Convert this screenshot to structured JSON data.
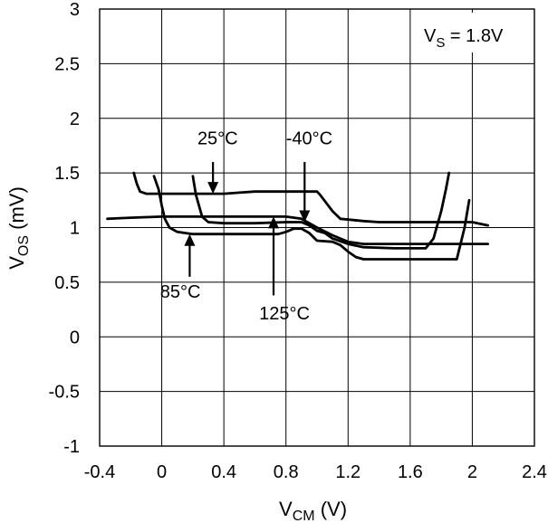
{
  "chart_data": {
    "type": "line",
    "xlabel": {
      "main": "V",
      "sub": "CM",
      "unit": " (V)"
    },
    "ylabel": {
      "main": "V",
      "sub": "OS",
      "unit": " (mV)"
    },
    "xlim": [
      -0.4,
      2.4
    ],
    "ylim": [
      -1,
      3
    ],
    "xticks": [
      -0.4,
      0,
      0.4,
      0.8,
      1.2,
      1.6,
      2,
      2.4
    ],
    "xtick_labels": [
      "-0.4",
      "0",
      "0.4",
      "0.8",
      "1.2",
      "1.6",
      "2",
      "2.4"
    ],
    "yticks": [
      -1,
      -0.5,
      0,
      0.5,
      1,
      1.5,
      2,
      2.5,
      3
    ],
    "ytick_labels": [
      "-1",
      "-0.5",
      "0",
      "0.5",
      "1",
      "1.5",
      "2",
      "2.5",
      "3"
    ],
    "grid": true,
    "condition": {
      "main": "V",
      "sub": "S",
      "value": " = 1.8V"
    },
    "series": [
      {
        "name": "25°C",
        "x": [
          -0.18,
          -0.16,
          -0.14,
          -0.1,
          0,
          0.2,
          0.4,
          0.5,
          0.6,
          1.0,
          1.02,
          1.1,
          1.15,
          1.3,
          1.4,
          2.0,
          2.1
        ],
        "y": [
          1.5,
          1.4,
          1.33,
          1.31,
          1.31,
          1.31,
          1.31,
          1.32,
          1.33,
          1.33,
          1.3,
          1.15,
          1.08,
          1.06,
          1.05,
          1.05,
          1.02
        ]
      },
      {
        "name": "-40°C",
        "x": [
          0.2,
          0.22,
          0.26,
          0.3,
          0.4,
          0.6,
          0.8,
          0.9,
          0.95,
          1.0,
          1.05,
          1.1,
          1.2,
          1.3,
          1.5,
          1.7,
          1.75,
          1.8,
          1.83,
          1.85
        ],
        "y": [
          1.47,
          1.3,
          1.1,
          1.05,
          1.04,
          1.04,
          1.05,
          1.05,
          1.02,
          0.97,
          0.95,
          0.9,
          0.85,
          0.82,
          0.81,
          0.81,
          0.9,
          1.15,
          1.35,
          1.5
        ]
      },
      {
        "name": "85°C",
        "x": [
          -0.05,
          -0.02,
          0.0,
          0.02,
          0.05,
          0.1,
          0.2,
          0.4,
          0.6,
          0.75,
          0.8,
          0.85,
          0.9,
          0.95,
          1.0,
          1.1,
          1.15,
          1.2,
          1.25,
          1.3,
          1.9,
          1.95,
          1.98
        ],
        "y": [
          1.47,
          1.35,
          1.2,
          1.08,
          1.0,
          0.96,
          0.94,
          0.94,
          0.94,
          0.94,
          0.96,
          0.99,
          0.99,
          0.95,
          0.88,
          0.87,
          0.84,
          0.78,
          0.73,
          0.71,
          0.71,
          1.0,
          1.25
        ]
      },
      {
        "name": "125°C",
        "x": [
          -0.35,
          -0.2,
          0.0,
          0.4,
          0.8,
          0.9,
          1.0,
          1.1,
          1.2,
          1.3,
          1.4,
          2.1
        ],
        "y": [
          1.08,
          1.09,
          1.1,
          1.1,
          1.1,
          1.08,
          1.0,
          0.93,
          0.87,
          0.85,
          0.85,
          0.85
        ]
      }
    ],
    "annotations": [
      {
        "text": "25°C",
        "label_x": 0.36,
        "label_y": 1.76,
        "arrow_from": [
          0.33,
          1.6
        ],
        "arrow_to": [
          0.33,
          1.31
        ]
      },
      {
        "text": "-40°C",
        "label_x": 0.95,
        "label_y": 1.76,
        "arrow_from": [
          0.92,
          1.6
        ],
        "arrow_to": [
          0.92,
          1.05
        ]
      },
      {
        "text": "85°C",
        "label_x": 0.12,
        "label_y": 0.36,
        "arrow_from": [
          0.18,
          0.55
        ],
        "arrow_to": [
          0.18,
          0.94
        ]
      },
      {
        "text": "125°C",
        "label_x": 0.79,
        "label_y": 0.16,
        "arrow_from": [
          0.72,
          0.38
        ],
        "arrow_to": [
          0.72,
          1.1
        ]
      }
    ]
  }
}
